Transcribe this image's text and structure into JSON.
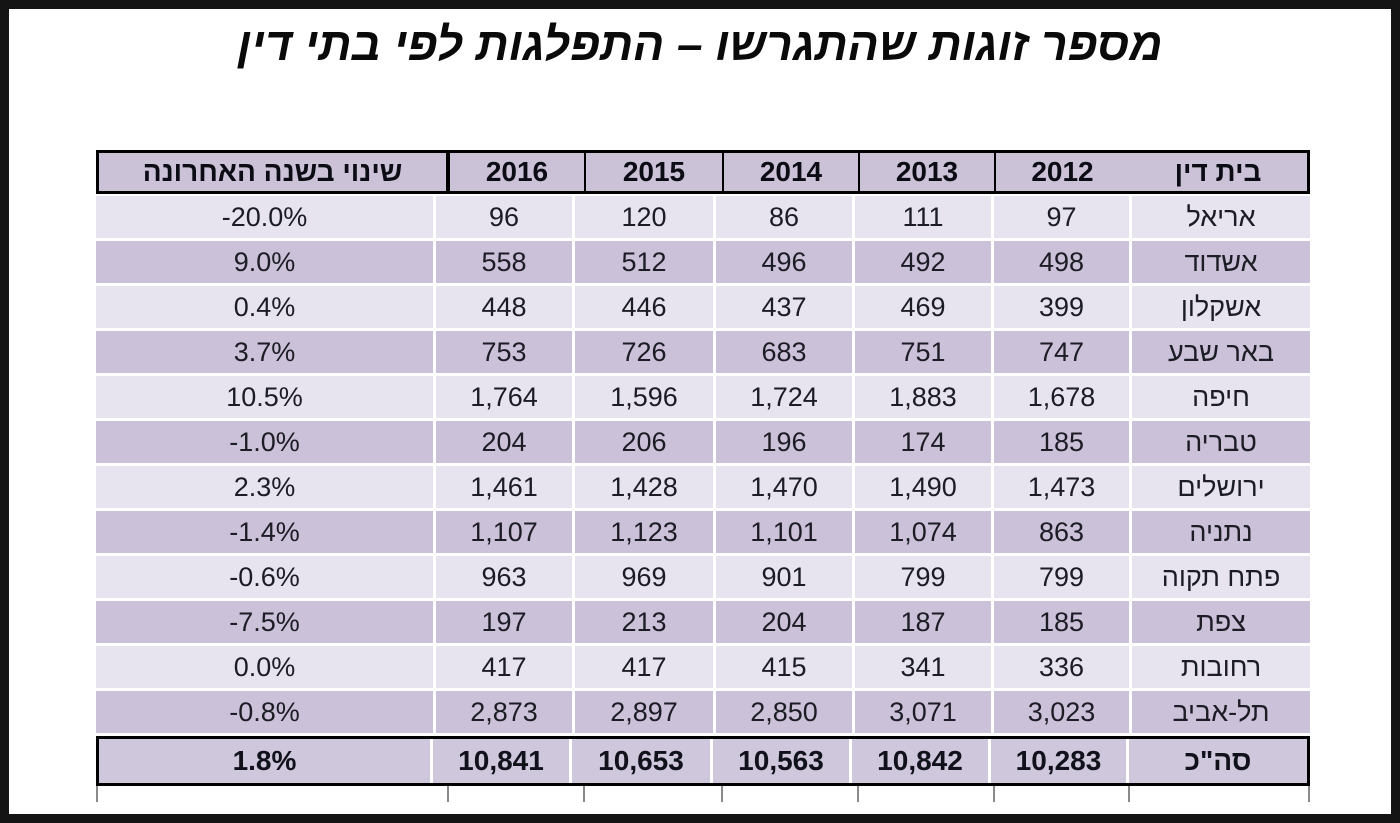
{
  "title": "מספר זוגות שהתגרשו – התפלגות לפי בתי דין",
  "chart_data": {
    "type": "table",
    "title": "מספר זוגות שהתגרשו – התפלגות לפי בתי דין",
    "direction": "rtl",
    "columns": [
      "בית דין",
      "2012",
      "2013",
      "2014",
      "2015",
      "2016",
      "שינוי בשנה האחרונה"
    ],
    "rows": [
      {
        "court": "אריאל",
        "values": [
          "97",
          "111",
          "86",
          "120",
          "96"
        ],
        "change": "-20.0%"
      },
      {
        "court": "אשדוד",
        "values": [
          "498",
          "492",
          "496",
          "512",
          "558"
        ],
        "change": "9.0%"
      },
      {
        "court": "אשקלון",
        "values": [
          "399",
          "469",
          "437",
          "446",
          "448"
        ],
        "change": "0.4%"
      },
      {
        "court": "באר שבע",
        "values": [
          "747",
          "751",
          "683",
          "726",
          "753"
        ],
        "change": "3.7%"
      },
      {
        "court": "חיפה",
        "values": [
          "1,678",
          "1,883",
          "1,724",
          "1,596",
          "1,764"
        ],
        "change": "10.5%"
      },
      {
        "court": "טבריה",
        "values": [
          "185",
          "174",
          "196",
          "206",
          "204"
        ],
        "change": "-1.0%"
      },
      {
        "court": "ירושלים",
        "values": [
          "1,473",
          "1,490",
          "1,470",
          "1,428",
          "1,461"
        ],
        "change": "2.3%"
      },
      {
        "court": "נתניה",
        "values": [
          "863",
          "1,074",
          "1,101",
          "1,123",
          "1,107"
        ],
        "change": "-1.4%"
      },
      {
        "court": "פתח תקוה",
        "values": [
          "799",
          "799",
          "901",
          "969",
          "963"
        ],
        "change": "-0.6%"
      },
      {
        "court": "צפת",
        "values": [
          "185",
          "187",
          "204",
          "213",
          "197"
        ],
        "change": "-7.5%"
      },
      {
        "court": "רחובות",
        "values": [
          "336",
          "341",
          "415",
          "417",
          "417"
        ],
        "change": "0.0%"
      },
      {
        "court": "תל-אביב",
        "values": [
          "3,023",
          "3,071",
          "2,850",
          "2,897",
          "2,873"
        ],
        "change": "-0.8%"
      }
    ],
    "total": {
      "court": "סה\"כ",
      "values": [
        "10,283",
        "10,842",
        "10,563",
        "10,653",
        "10,841"
      ],
      "change": "1.8%"
    },
    "row_striping": [
      "light",
      "dark"
    ],
    "legend_position": "none",
    "grid": "white-separators"
  },
  "colors": {
    "frame": "#141414",
    "text": "#1c1c24",
    "row_light": "#e7e3ef",
    "row_dark": "#cbc1d8",
    "header_bg": "#cbc2d8",
    "total_bg": "#cfc7db"
  }
}
